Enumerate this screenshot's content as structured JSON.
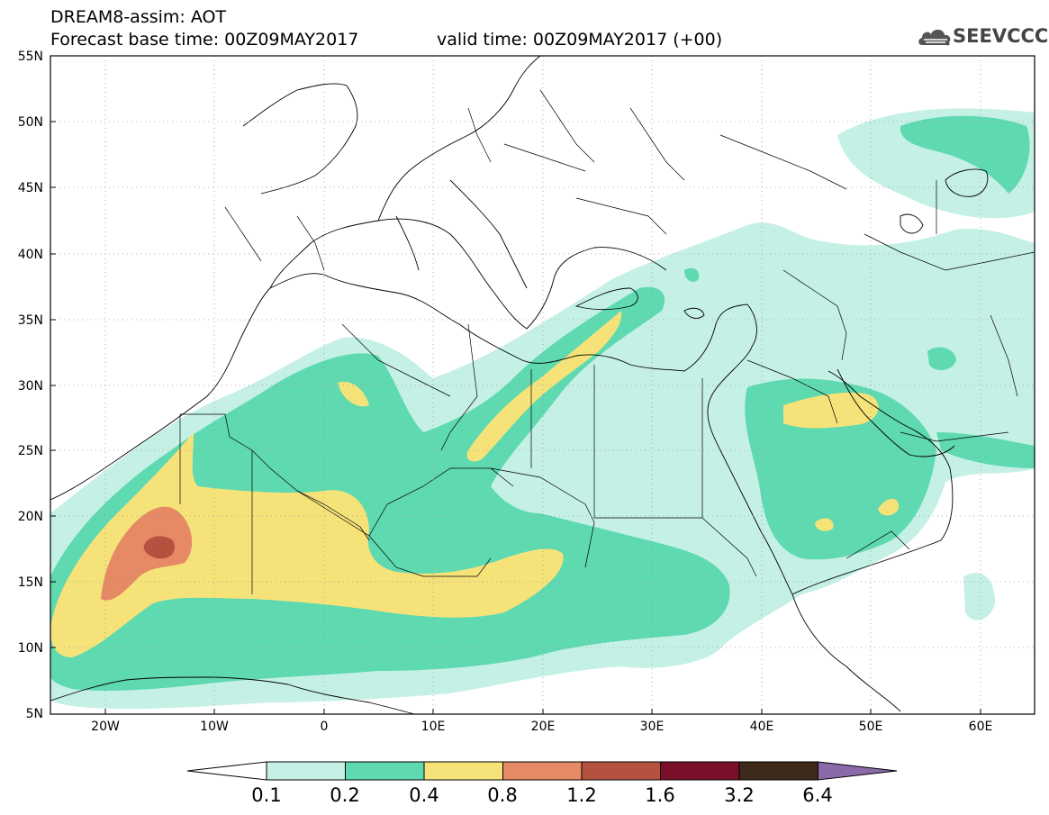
{
  "header": {
    "line1": "DREAM8-assim: AOT",
    "line2": "Forecast base time: 00Z09MAY2017",
    "valid": "valid time: 00Z09MAY2017 (+00)",
    "logo": "SEEVCCC"
  },
  "axes": {
    "lat_labels": [
      "55N",
      "50N",
      "45N",
      "40N",
      "35N",
      "30N",
      "25N",
      "20N",
      "15N",
      "10N",
      "5N"
    ],
    "lon_labels": [
      "20W",
      "10W",
      "0",
      "10E",
      "20E",
      "30E",
      "40E",
      "50E",
      "60E"
    ]
  },
  "colorbar": {
    "labels": [
      "0.1",
      "0.2",
      "0.4",
      "0.8",
      "1.2",
      "1.6",
      "3.2",
      "6.4"
    ],
    "colors": [
      "#ffffff",
      "#c5f0e6",
      "#5ed9b0",
      "#f5e37a",
      "#e68a66",
      "#b5523f",
      "#7a0f2a",
      "#3d2a1a",
      "#8a6aa8"
    ]
  },
  "legend_colors": {
    "c01": "#c5f0e6",
    "c02": "#5ed9b0",
    "c04": "#f5e37a",
    "c08": "#e68a66",
    "c12": "#b5523f"
  }
}
